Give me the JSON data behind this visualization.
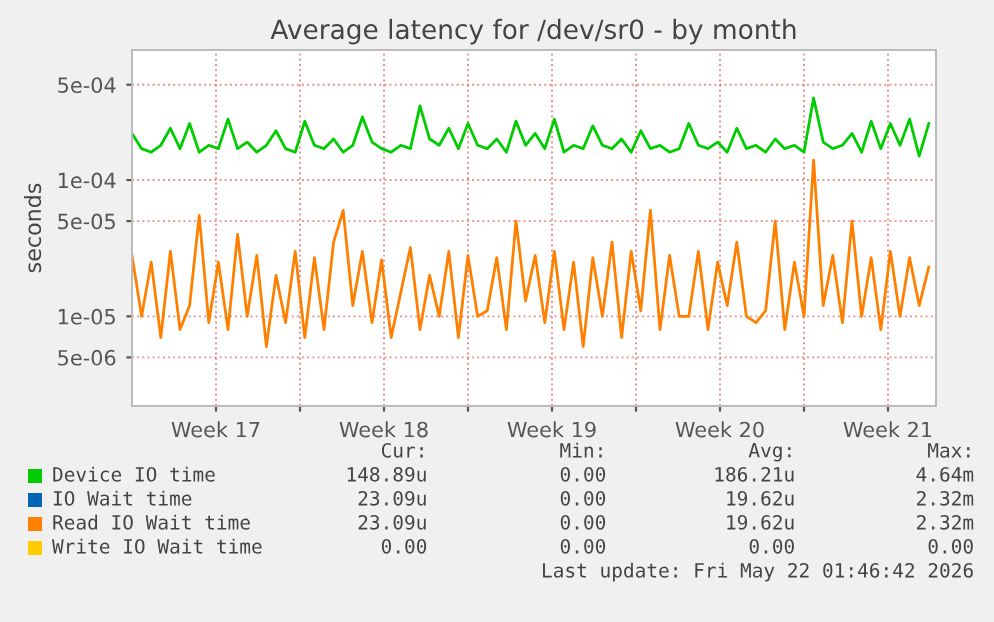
{
  "chart_data": {
    "type": "line",
    "title": "Average latency for /dev/sr0 - by month",
    "ylabel": "seconds",
    "log": "y",
    "grid": true,
    "legend": "bottom",
    "marker": "none",
    "line_style": "solid",
    "ylim": [
      2.2e-06,
      0.0009
    ],
    "yticks": [
      {
        "value": 5e-06,
        "label": "5e-06"
      },
      {
        "value": 1e-05,
        "label": "1e-05"
      },
      {
        "value": 5e-05,
        "label": "5e-05"
      },
      {
        "value": 0.0001,
        "label": "1e-04"
      },
      {
        "value": 0.0005,
        "label": "5e-04"
      }
    ],
    "xlim": [
      "2026-04-18T12:00",
      "2026-05-22T00:00"
    ],
    "xticks": [
      {
        "value": "2026-04-22T00:00",
        "label": "Week 17"
      },
      {
        "value": "2026-04-25T12:00",
        "label": null
      },
      {
        "value": "2026-04-29T00:00",
        "label": "Week 18"
      },
      {
        "value": "2026-05-02T12:00",
        "label": null
      },
      {
        "value": "2026-05-06T00:00",
        "label": "Week 19"
      },
      {
        "value": "2026-05-09T12:00",
        "label": null
      },
      {
        "value": "2026-05-13T00:00",
        "label": "Week 20"
      },
      {
        "value": "2026-05-16T12:00",
        "label": null
      },
      {
        "value": "2026-05-20T00:00",
        "label": "Week 21"
      }
    ],
    "x": [
      "2026-04-18T12:00",
      "2026-04-18T21:36",
      "2026-04-19T07:12",
      "2026-04-19T16:48",
      "2026-04-20T02:24",
      "2026-04-20T12:00",
      "2026-04-20T21:36",
      "2026-04-21T07:12",
      "2026-04-21T16:48",
      "2026-04-22T02:24",
      "2026-04-22T12:00",
      "2026-04-22T21:36",
      "2026-04-23T07:12",
      "2026-04-23T16:48",
      "2026-04-24T02:24",
      "2026-04-24T12:00",
      "2026-04-24T21:36",
      "2026-04-25T07:12",
      "2026-04-25T16:48",
      "2026-04-26T02:24",
      "2026-04-26T12:00",
      "2026-04-26T21:36",
      "2026-04-27T07:12",
      "2026-04-27T16:48",
      "2026-04-28T02:24",
      "2026-04-28T12:00",
      "2026-04-28T21:36",
      "2026-04-29T07:12",
      "2026-04-29T16:48",
      "2026-04-30T02:24",
      "2026-04-30T12:00",
      "2026-04-30T21:36",
      "2026-05-01T07:12",
      "2026-05-01T16:48",
      "2026-05-02T02:24",
      "2026-05-02T12:00",
      "2026-05-02T21:36",
      "2026-05-03T07:12",
      "2026-05-03T16:48",
      "2026-05-04T02:24",
      "2026-05-04T12:00",
      "2026-05-04T21:36",
      "2026-05-05T07:12",
      "2026-05-05T16:48",
      "2026-05-06T02:24",
      "2026-05-06T12:00",
      "2026-05-06T21:36",
      "2026-05-07T07:12",
      "2026-05-07T16:48",
      "2026-05-08T02:24",
      "2026-05-08T12:00",
      "2026-05-08T21:36",
      "2026-05-09T07:12",
      "2026-05-09T16:48",
      "2026-05-10T02:24",
      "2026-05-10T12:00",
      "2026-05-10T21:36",
      "2026-05-11T07:12",
      "2026-05-11T16:48",
      "2026-05-12T02:24",
      "2026-05-12T12:00",
      "2026-05-12T21:36",
      "2026-05-13T07:12",
      "2026-05-13T16:48",
      "2026-05-14T02:24",
      "2026-05-14T12:00",
      "2026-05-14T21:36",
      "2026-05-15T07:12",
      "2026-05-15T16:48",
      "2026-05-16T02:24",
      "2026-05-16T12:00",
      "2026-05-16T21:36",
      "2026-05-17T07:12",
      "2026-05-17T16:48",
      "2026-05-18T02:24",
      "2026-05-18T12:00",
      "2026-05-18T21:36",
      "2026-05-19T07:12",
      "2026-05-19T16:48",
      "2026-05-20T02:24",
      "2026-05-20T12:00",
      "2026-05-20T21:36",
      "2026-05-21T07:12",
      "2026-05-21T16:48"
    ],
    "series": [
      {
        "name": "Device IO time",
        "color": "#00cc00",
        "values": [
          0.00022,
          0.00017,
          0.00016,
          0.00018,
          0.00024,
          0.00017,
          0.00026,
          0.00016,
          0.00018,
          0.00017,
          0.00028,
          0.00017,
          0.00019,
          0.00016,
          0.00018,
          0.00023,
          0.00017,
          0.00016,
          0.00027,
          0.00018,
          0.00017,
          0.0002,
          0.00016,
          0.00018,
          0.00029,
          0.00019,
          0.00017,
          0.00016,
          0.00018,
          0.00017,
          0.00035,
          0.0002,
          0.00018,
          0.00024,
          0.00017,
          0.00026,
          0.00018,
          0.00017,
          0.0002,
          0.00016,
          0.00027,
          0.00018,
          0.00022,
          0.00017,
          0.00028,
          0.00016,
          0.00018,
          0.00017,
          0.00025,
          0.00018,
          0.00017,
          0.0002,
          0.00016,
          0.00023,
          0.00017,
          0.00018,
          0.00016,
          0.00017,
          0.00026,
          0.00018,
          0.00017,
          0.00019,
          0.00016,
          0.00024,
          0.00017,
          0.00018,
          0.00016,
          0.0002,
          0.00017,
          0.00018,
          0.00016,
          0.0004,
          0.00019,
          0.00017,
          0.00018,
          0.00022,
          0.00016,
          0.00027,
          0.00017,
          0.00026,
          0.00018,
          0.00028,
          0.00015,
          0.00026
        ]
      },
      {
        "name": "IO Wait time",
        "color": "#0066b3",
        "values": [
          null,
          null,
          null,
          null,
          null,
          null,
          null,
          null,
          null,
          null,
          null,
          null,
          null,
          null,
          null,
          null,
          null,
          null,
          null,
          null,
          null,
          null,
          null,
          null,
          null,
          null,
          null,
          null,
          null,
          null,
          null,
          null,
          null,
          null,
          null,
          null,
          null,
          null,
          null,
          null,
          null,
          null,
          null,
          null,
          null,
          null,
          null,
          null,
          null,
          null,
          null,
          null,
          null,
          null,
          null,
          null,
          null,
          null,
          null,
          null,
          null,
          null,
          null,
          null,
          null,
          null,
          null,
          null,
          null,
          null,
          null,
          null,
          null,
          null,
          null,
          null,
          null,
          null,
          null,
          null,
          null,
          null,
          null,
          null
        ]
      },
      {
        "name": "Read IO Wait time",
        "color": "#ff8000",
        "values": [
          2.8e-05,
          1e-05,
          2.5e-05,
          7e-06,
          3e-05,
          8e-06,
          1.2e-05,
          5.5e-05,
          9e-06,
          2.5e-05,
          8e-06,
          4e-05,
          1e-05,
          2.8e-05,
          6e-06,
          2e-05,
          9e-06,
          3e-05,
          7e-06,
          2.7e-05,
          8e-06,
          3.5e-05,
          6e-05,
          1.2e-05,
          3e-05,
          9e-06,
          2.6e-05,
          7e-06,
          1.5e-05,
          3.2e-05,
          8e-06,
          2e-05,
          1e-05,
          3e-05,
          7e-06,
          2.8e-05,
          1e-05,
          1.1e-05,
          2.7e-05,
          8e-06,
          5e-05,
          1.3e-05,
          2.8e-05,
          9e-06,
          3e-05,
          8e-06,
          2.5e-05,
          6e-06,
          2.7e-05,
          1e-05,
          3.5e-05,
          7e-06,
          3e-05,
          1.1e-05,
          6e-05,
          8e-06,
          2.8e-05,
          1e-05,
          1e-05,
          3e-05,
          8e-06,
          2.5e-05,
          1.2e-05,
          3.5e-05,
          1e-05,
          9e-06,
          1.1e-05,
          5e-05,
          8e-06,
          2.5e-05,
          1e-05,
          0.00014,
          1.2e-05,
          2.8e-05,
          9e-06,
          5e-05,
          1e-05,
          2.7e-05,
          8e-06,
          3e-05,
          1e-05,
          2.7e-05,
          1.2e-05,
          2.3e-05
        ]
      },
      {
        "name": "Write IO Wait time",
        "color": "#ffcc00",
        "values": [
          null,
          null,
          null,
          null,
          null,
          null,
          null,
          null,
          null,
          null,
          null,
          null,
          null,
          null,
          null,
          null,
          null,
          null,
          null,
          null,
          null,
          null,
          null,
          null,
          null,
          null,
          null,
          null,
          null,
          null,
          null,
          null,
          null,
          null,
          null,
          null,
          null,
          null,
          null,
          null,
          null,
          null,
          null,
          null,
          null,
          null,
          null,
          null,
          null,
          null,
          null,
          null,
          null,
          null,
          null,
          null,
          null,
          null,
          null,
          null,
          null,
          null,
          null,
          null,
          null,
          null,
          null,
          null,
          null,
          null,
          null,
          null,
          null,
          null,
          null,
          null,
          null,
          null,
          null,
          null,
          null,
          null,
          null,
          null
        ]
      }
    ],
    "annotations": [
      "Cur:",
      "Min:",
      "Avg:",
      "Max:",
      "148.89u",
      "0.00",
      "186.21u",
      "4.64m",
      "23.09u",
      "0.00",
      "19.62u",
      "2.32m",
      "23.09u",
      "0.00",
      "19.62u",
      "2.32m",
      "0.00",
      "0.00",
      "0.00",
      "0.00",
      "Last update: Fri May 22 01:46:42 2026"
    ]
  }
}
